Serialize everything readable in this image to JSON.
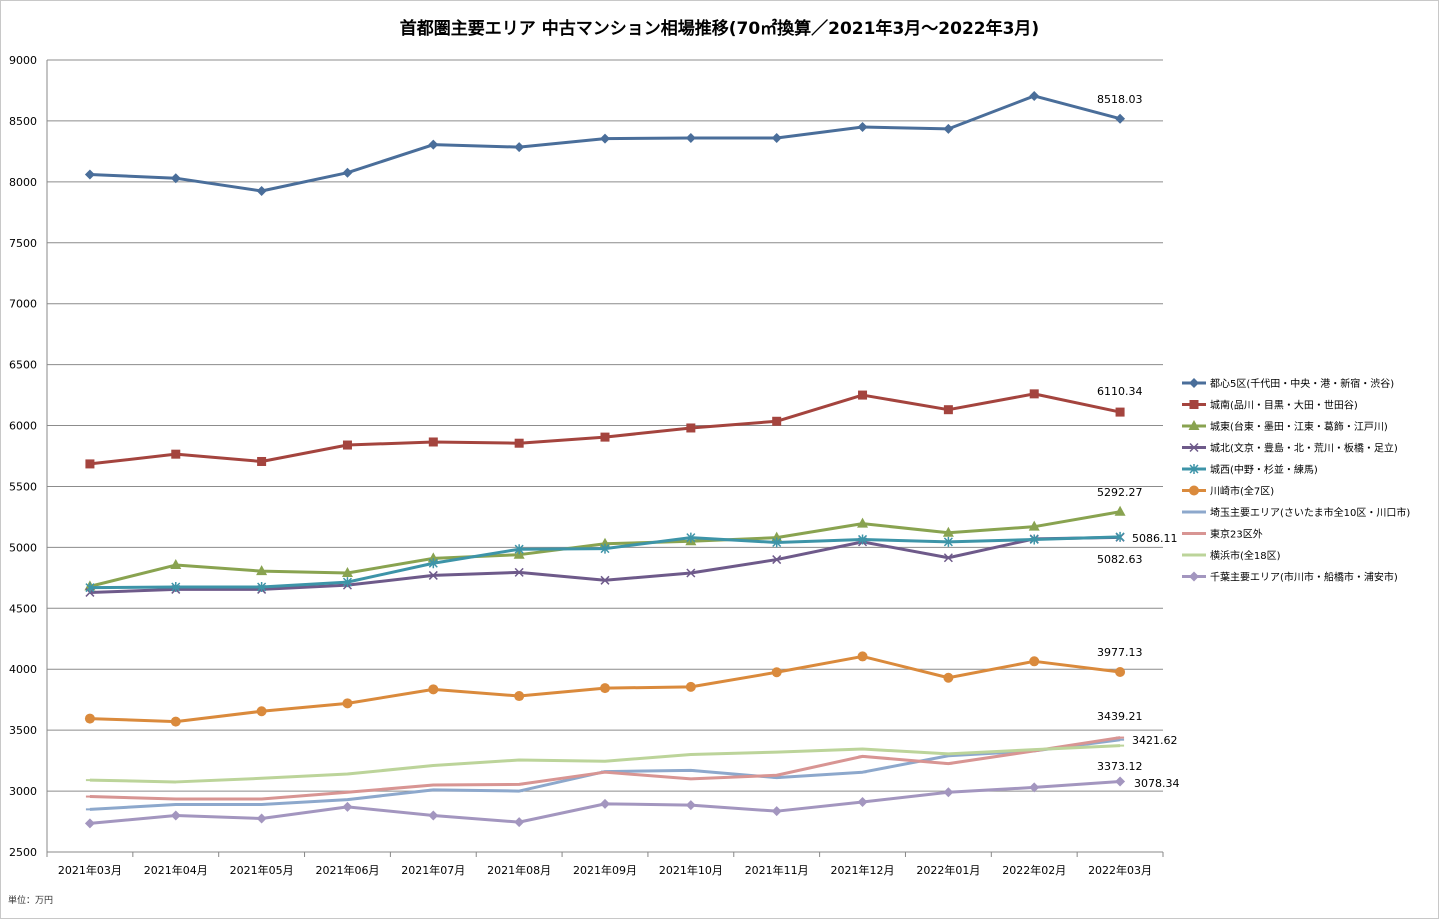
{
  "unit_label": "単位：万円",
  "chart_data": {
    "type": "line",
    "title": "首都圏主要エリア 中古マンション相場推移(70㎡換算／2021年3月～2022年3月)",
    "xlabel": "",
    "ylabel": "",
    "ylim": [
      2500,
      9000
    ],
    "yticks": [
      2500,
      3000,
      3500,
      4000,
      4500,
      5000,
      5500,
      6000,
      6500,
      7000,
      7500,
      8000,
      8500,
      9000
    ],
    "grid": true,
    "legend_position": "right",
    "categories": [
      "2021年03月",
      "2021年04月",
      "2021年05月",
      "2021年06月",
      "2021年07月",
      "2021年08月",
      "2021年09月",
      "2021年10月",
      "2021年11月",
      "2021年12月",
      "2022年01月",
      "2022年02月",
      "2022年03月"
    ],
    "series": [
      {
        "name": "都心5区(千代田・中央・港・新宿・渋谷)",
        "color": "#4a6e9a",
        "marker": "diamond",
        "values": [
          8060,
          8030,
          7925,
          8075,
          8305,
          8285,
          8355,
          8360,
          8360,
          8450,
          8435,
          8705,
          8518.03
        ],
        "end_label": "8518.03"
      },
      {
        "name": "城南(品川・目黒・大田・世田谷)",
        "color": "#a4443e",
        "marker": "square",
        "values": [
          5685,
          5765,
          5705,
          5840,
          5865,
          5855,
          5905,
          5980,
          6035,
          6250,
          6130,
          6260,
          6110.34
        ],
        "end_label": "6110.34"
      },
      {
        "name": "城東(台東・墨田・江東・葛飾・江戸川)",
        "color": "#89a350",
        "marker": "triangle",
        "values": [
          4680,
          4855,
          4805,
          4790,
          4910,
          4940,
          5030,
          5050,
          5080,
          5195,
          5120,
          5170,
          5292.27
        ],
        "end_label": "5292.27"
      },
      {
        "name": "城北(文京・豊島・北・荒川・板橋・足立)",
        "color": "#6e5a8a",
        "marker": "x",
        "values": [
          4630,
          4655,
          4655,
          4690,
          4770,
          4795,
          4730,
          4790,
          4900,
          5045,
          4915,
          5070,
          5082.63
        ],
        "end_label": "5082.63"
      },
      {
        "name": "城西(中野・杉並・練馬)",
        "color": "#3d94a8",
        "marker": "star",
        "values": [
          4670,
          4675,
          4675,
          4715,
          4870,
          4985,
          4990,
          5080,
          5040,
          5065,
          5045,
          5065,
          5086.11
        ],
        "end_label": "5086.11"
      },
      {
        "name": "川崎市(全7区)",
        "color": "#da8a3c",
        "marker": "circle",
        "values": [
          3595,
          3570,
          3655,
          3720,
          3835,
          3780,
          3845,
          3855,
          3975,
          4105,
          3930,
          4065,
          3977.13
        ],
        "end_label": "3977.13"
      },
      {
        "name": "埼玉主要エリア(さいたま市全10区・川口市)",
        "color": "#8da8cc",
        "marker": "dash",
        "values": [
          2850,
          2890,
          2890,
          2930,
          3010,
          3000,
          3160,
          3170,
          3110,
          3155,
          3290,
          3330,
          3421.62
        ],
        "end_label": "3421.62"
      },
      {
        "name": "東京23区外",
        "color": "#d89593",
        "marker": "dash",
        "values": [
          2955,
          2935,
          2935,
          2990,
          3050,
          3055,
          3155,
          3100,
          3130,
          3285,
          3225,
          3330,
          3439.21
        ],
        "end_label": "3439.21"
      },
      {
        "name": "横浜市(全18区)",
        "color": "#bcd49a",
        "marker": "dash",
        "values": [
          3090,
          3075,
          3105,
          3140,
          3210,
          3255,
          3245,
          3300,
          3320,
          3345,
          3305,
          3340,
          3373.12
        ],
        "end_label": "3373.12"
      },
      {
        "name": "千葉主要エリア(市川市・船橋市・浦安市)",
        "color": "#a396bf",
        "marker": "diamond",
        "values": [
          2735,
          2800,
          2775,
          2870,
          2800,
          2745,
          2895,
          2885,
          2835,
          2910,
          2990,
          3030,
          3078.34
        ],
        "end_label": "3078.34"
      }
    ]
  }
}
